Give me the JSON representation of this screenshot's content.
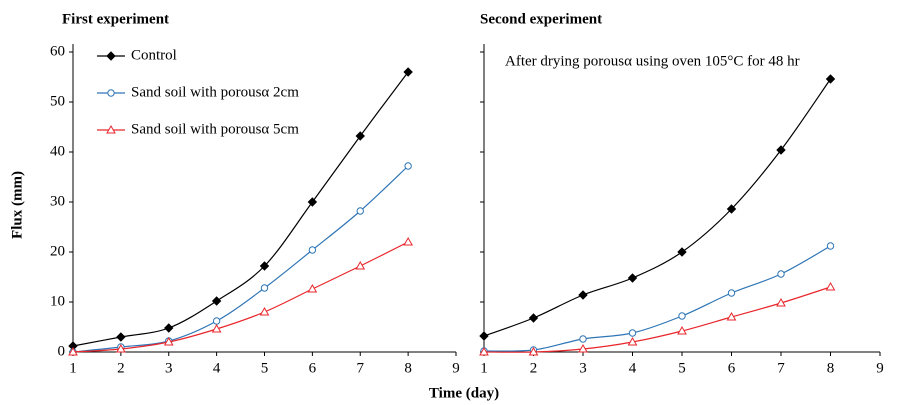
{
  "xlabel": "Time (day)",
  "ylabel": "Flux (mm)",
  "chart_data": [
    {
      "type": "line",
      "title": "First experiment",
      "x": [
        1,
        2,
        3,
        4,
        5,
        6,
        7,
        8
      ],
      "xlim": [
        1,
        9
      ],
      "xticks": [
        1,
        2,
        3,
        4,
        5,
        6,
        7,
        8,
        9
      ],
      "ylim": [
        0,
        60
      ],
      "yticks": [
        0,
        10,
        20,
        30,
        40,
        50,
        60
      ],
      "show_ytick_labels": true,
      "legend": "upper left",
      "series": [
        {
          "name": "Control",
          "color": "#000000",
          "marker": "diamond",
          "values": [
            1.2,
            3.0,
            4.8,
            10.2,
            17.2,
            30,
            43.2,
            56
          ]
        },
        {
          "name": "Sand soil with porousα 2cm",
          "color": "#2e75b6",
          "marker": "circle",
          "values": [
            0,
            1,
            2.2,
            6.2,
            12.8,
            20.4,
            28.2,
            37.2
          ]
        },
        {
          "name": "Sand soil with porousα 5cm",
          "color": "#e8262b",
          "marker": "triangle",
          "values": [
            0,
            0.6,
            2,
            4.6,
            8,
            12.6,
            17.2,
            22
          ]
        }
      ]
    },
    {
      "type": "line",
      "title": "Second experiment",
      "annotation": "After drying porousα using oven 105°C for 48 hr",
      "x": [
        1,
        2,
        3,
        4,
        5,
        6,
        7,
        8
      ],
      "xlim": [
        1,
        9
      ],
      "xticks": [
        1,
        2,
        3,
        4,
        5,
        6,
        7,
        8,
        9
      ],
      "ylim": [
        0,
        60
      ],
      "yticks": [
        0,
        10,
        20,
        30,
        40,
        50,
        60
      ],
      "show_ytick_labels": false,
      "series": [
        {
          "name": "Control",
          "color": "#000000",
          "marker": "diamond",
          "values": [
            3.2,
            6.8,
            11.4,
            14.8,
            20,
            28.6,
            40.4,
            54.6
          ]
        },
        {
          "name": "Sand soil with porousα 2cm",
          "color": "#2e75b6",
          "marker": "circle",
          "values": [
            0.2,
            0.4,
            2.6,
            3.8,
            7.2,
            11.8,
            15.6,
            21.2
          ]
        },
        {
          "name": "Sand soil with porousα 5cm",
          "color": "#e8262b",
          "marker": "triangle",
          "values": [
            0,
            0,
            0.6,
            2,
            4.2,
            7,
            9.8,
            13
          ]
        }
      ]
    }
  ]
}
